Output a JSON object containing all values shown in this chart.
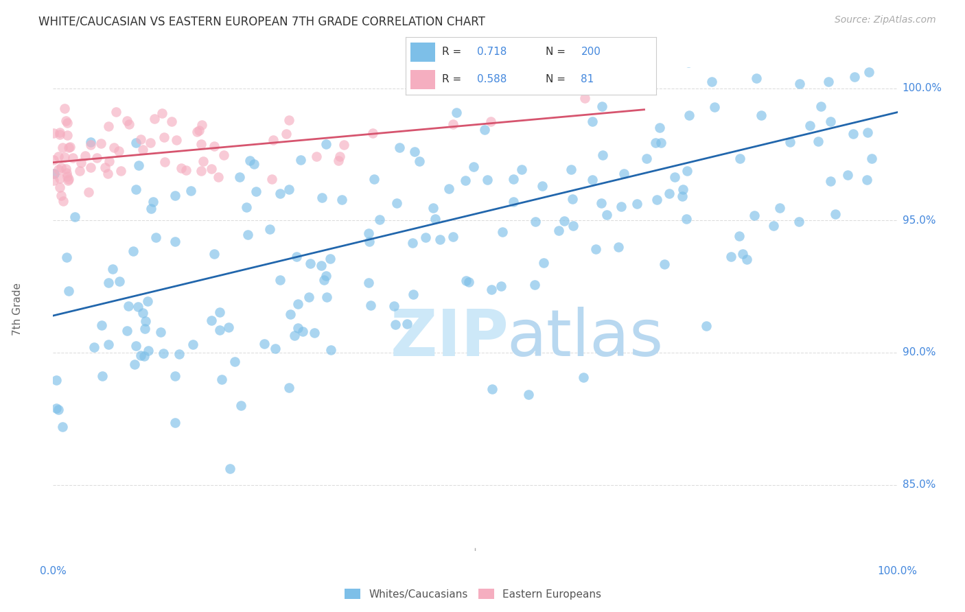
{
  "title": "WHITE/CAUCASIAN VS EASTERN EUROPEAN 7TH GRADE CORRELATION CHART",
  "source": "Source: ZipAtlas.com",
  "ylabel": "7th Grade",
  "ytick_labels": [
    "85.0%",
    "90.0%",
    "95.0%",
    "100.0%"
  ],
  "ytick_values": [
    0.85,
    0.9,
    0.95,
    1.0
  ],
  "legend_blue_label": "Whites/Caucasians",
  "legend_pink_label": "Eastern Europeans",
  "blue_R": 0.718,
  "blue_N": 200,
  "pink_R": 0.588,
  "pink_N": 81,
  "blue_color": "#7dbfe8",
  "pink_color": "#f5aec0",
  "blue_line_color": "#2166ac",
  "pink_line_color": "#d6546e",
  "background_color": "#ffffff",
  "title_color": "#333333",
  "source_color": "#aaaaaa",
  "axis_label_color": "#4488dd",
  "grid_color": "#dddddd",
  "xmin": 0.0,
  "xmax": 1.0,
  "ymin": 0.825,
  "ymax": 1.008,
  "blue_line_start_x": 0.0,
  "blue_line_start_y": 0.914,
  "blue_line_end_x": 1.0,
  "blue_line_end_y": 0.991,
  "pink_line_start_x": 0.0,
  "pink_line_start_y": 0.972,
  "pink_line_end_x": 0.7,
  "pink_line_end_y": 0.992
}
